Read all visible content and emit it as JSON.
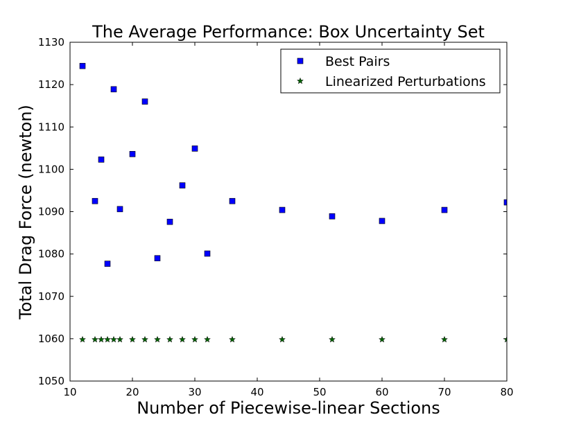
{
  "chart_data": {
    "type": "scatter",
    "title": "The Average Performance: Box Uncertainty Set",
    "xlabel": "Number of Piecewise-linear Sections",
    "ylabel": "Total Drag Force (newton)",
    "xlim": [
      10,
      80
    ],
    "ylim": [
      1050,
      1130
    ],
    "xticks": [
      10,
      20,
      30,
      40,
      50,
      60,
      70,
      80
    ],
    "yticks": [
      1050,
      1060,
      1070,
      1080,
      1090,
      1100,
      1110,
      1120,
      1130
    ],
    "grid": false,
    "legend_position": "top-right",
    "series": [
      {
        "name": "Best Pairs",
        "marker": "square",
        "color": "#0000ff",
        "x": [
          12,
          14,
          15,
          16,
          17,
          18,
          20,
          22,
          24,
          26,
          28,
          30,
          32,
          36,
          44,
          52,
          60,
          70,
          80
        ],
        "y": [
          1124.4,
          1092.5,
          1102.3,
          1077.7,
          1118.9,
          1090.6,
          1103.6,
          1116.0,
          1079.0,
          1087.6,
          1096.2,
          1104.9,
          1080.1,
          1092.5,
          1090.4,
          1088.9,
          1087.8,
          1090.4,
          1092.2
        ]
      },
      {
        "name": "Linearized Perturbations",
        "marker": "star",
        "color": "#006400",
        "x": [
          12,
          14,
          15,
          16,
          17,
          18,
          20,
          22,
          24,
          26,
          28,
          30,
          32,
          36,
          44,
          52,
          60,
          70,
          80
        ],
        "y": [
          1059.8,
          1059.8,
          1059.8,
          1059.8,
          1059.8,
          1059.8,
          1059.8,
          1059.8,
          1059.8,
          1059.8,
          1059.8,
          1059.8,
          1059.8,
          1059.8,
          1059.8,
          1059.8,
          1059.8,
          1059.8,
          1059.8
        ]
      }
    ]
  }
}
